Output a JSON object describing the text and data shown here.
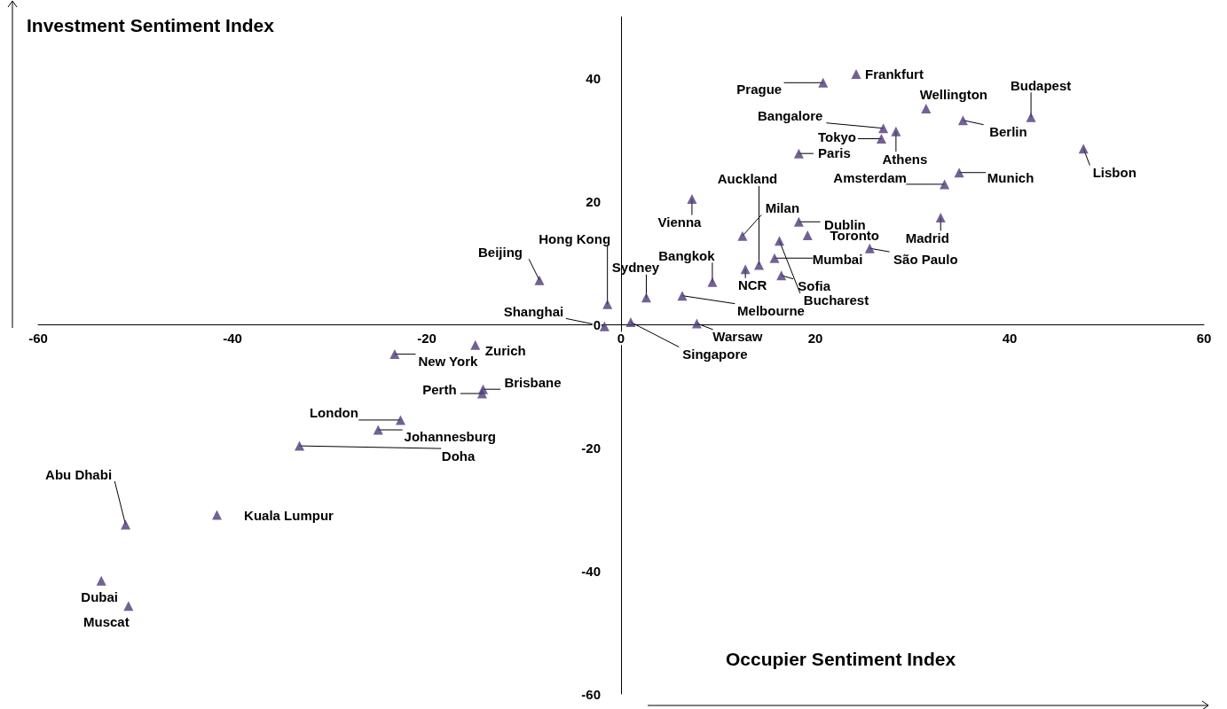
{
  "chart_data": {
    "type": "scatter",
    "xlabel": "Occupier Sentiment Index",
    "ylabel": "Investment Sentiment Index",
    "x": [
      24.2,
      20.8,
      31.4,
      42.2,
      35.2,
      27.0,
      28.3,
      26.8,
      47.6,
      18.3,
      34.8,
      33.3,
      7.3,
      32.9,
      18.3,
      19.2,
      12.5,
      14.2,
      16.3,
      16.5,
      25.6,
      15.8,
      12.8,
      9.4,
      2.6,
      6.3,
      -1.4,
      -8.4,
      -1.7,
      1.0,
      7.8,
      -15.0,
      -23.3,
      -14.2,
      -14.3,
      -22.7,
      -25.0,
      -33.1,
      -41.6,
      -51.0,
      -53.5,
      -50.7
    ],
    "series": [
      {
        "color": "#4f3a7a",
        "values": [
          40.7,
          39.3,
          35.1,
          33.7,
          33.2,
          31.9,
          31.4,
          30.2,
          28.6,
          27.8,
          24.7,
          22.8,
          20.4,
          17.4,
          16.7,
          14.5,
          14.4,
          9.7,
          13.6,
          8.0,
          12.4,
          10.8,
          9.0,
          6.9,
          4.4,
          4.7,
          3.3,
          7.2,
          -0.3,
          0.4,
          0.2,
          -3.3,
          -4.8,
          -10.5,
          -11.2,
          -15.5,
          -17.1,
          -19.7,
          -30.9,
          -32.5,
          -41.6,
          -45.7
        ]
      }
    ],
    "annotations": [
      {
        "text": "Frankfurt",
        "x": 24.2,
        "y": 40.7
      },
      {
        "text": "Prague",
        "x": 20.8,
        "y": 39.3
      },
      {
        "text": "Wellington",
        "x": 31.4,
        "y": 35.1
      },
      {
        "text": "Budapest",
        "x": 42.2,
        "y": 33.7
      },
      {
        "text": "Berlin",
        "x": 35.2,
        "y": 33.2
      },
      {
        "text": "Bangalore",
        "x": 27.0,
        "y": 31.9
      },
      {
        "text": "Athens",
        "x": 28.3,
        "y": 31.4
      },
      {
        "text": "Tokyo",
        "x": 26.8,
        "y": 30.2
      },
      {
        "text": "Lisbon",
        "x": 47.6,
        "y": 28.6
      },
      {
        "text": "Paris",
        "x": 18.3,
        "y": 27.8
      },
      {
        "text": "Munich",
        "x": 34.8,
        "y": 24.7
      },
      {
        "text": "Amsterdam",
        "x": 33.3,
        "y": 22.8
      },
      {
        "text": "Vienna",
        "x": 7.3,
        "y": 20.4
      },
      {
        "text": "Madrid",
        "x": 32.9,
        "y": 17.4
      },
      {
        "text": "Dublin",
        "x": 18.3,
        "y": 16.7
      },
      {
        "text": "Toronto",
        "x": 19.2,
        "y": 14.5
      },
      {
        "text": "Milan",
        "x": 12.5,
        "y": 14.4
      },
      {
        "text": "Auckland",
        "x": 14.2,
        "y": 9.7
      },
      {
        "text": "Bucharest",
        "x": 16.3,
        "y": 13.6
      },
      {
        "text": "Sofia",
        "x": 16.5,
        "y": 8.0
      },
      {
        "text": "São Paulo",
        "x": 25.6,
        "y": 12.4
      },
      {
        "text": "Mumbai",
        "x": 15.8,
        "y": 10.8
      },
      {
        "text": "NCR",
        "x": 12.8,
        "y": 9.0
      },
      {
        "text": "Bangkok",
        "x": 9.4,
        "y": 6.9
      },
      {
        "text": "Sydney",
        "x": 2.6,
        "y": 4.4
      },
      {
        "text": "Melbourne",
        "x": 6.3,
        "y": 4.7
      },
      {
        "text": "Hong Kong",
        "x": -1.4,
        "y": 3.3
      },
      {
        "text": "Beijing",
        "x": -8.4,
        "y": 7.2
      },
      {
        "text": "Shanghai",
        "x": -1.7,
        "y": -0.3
      },
      {
        "text": "Singapore",
        "x": 1.0,
        "y": 0.4
      },
      {
        "text": "Warsaw",
        "x": 7.8,
        "y": 0.2
      },
      {
        "text": "Zurich",
        "x": -15.0,
        "y": -3.3
      },
      {
        "text": "New York",
        "x": -23.3,
        "y": -4.8
      },
      {
        "text": "Brisbane",
        "x": -14.2,
        "y": -10.5
      },
      {
        "text": "Perth",
        "x": -14.3,
        "y": -11.2
      },
      {
        "text": "London",
        "x": -22.7,
        "y": -15.5
      },
      {
        "text": "Johannesburg",
        "x": -25.0,
        "y": -17.1
      },
      {
        "text": "Doha",
        "x": -33.1,
        "y": -19.7
      },
      {
        "text": "Kuala Lumpur",
        "x": -41.6,
        "y": -30.9
      },
      {
        "text": "Abu Dhabi",
        "x": -51.0,
        "y": -32.5
      },
      {
        "text": "Dubai",
        "x": -53.5,
        "y": -41.6
      },
      {
        "text": "Muscat",
        "x": -50.7,
        "y": -45.7
      }
    ],
    "xlim": [
      -60,
      60
    ],
    "xticks": [
      -60,
      -40,
      -20,
      0,
      20,
      40,
      60
    ],
    "ylim": [
      -60,
      50
    ],
    "yticks": [
      -60,
      -40,
      -20,
      0,
      20,
      40
    ],
    "grid": false,
    "marker": "triangle"
  }
}
